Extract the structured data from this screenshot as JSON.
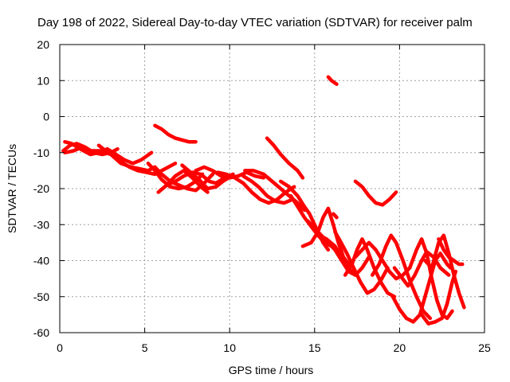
{
  "chart_data": {
    "type": "line",
    "title": "Day 198 of 2022, Sidereal Day-to-day VTEC variation (SDTVAR) for receiver palm",
    "xlabel": "GPS time / hours",
    "ylabel": "SDTVAR / TECUs",
    "xlim": [
      0,
      25
    ],
    "ylim": [
      -60,
      20
    ],
    "xticks": [
      0,
      5,
      10,
      15,
      20,
      25
    ],
    "yticks": [
      -60,
      -50,
      -40,
      -30,
      -20,
      -10,
      0,
      10,
      20
    ],
    "grid": true,
    "color": "#ff0000",
    "series": [
      {
        "name": "trace-1",
        "points": [
          [
            0.2,
            -9.5
          ],
          [
            0.6,
            -8
          ],
          [
            1.0,
            -7.5
          ],
          [
            1.5,
            -8.5
          ],
          [
            2.0,
            -10
          ],
          [
            2.5,
            -10.5
          ],
          [
            3.0,
            -10
          ],
          [
            3.4,
            -9
          ]
        ]
      },
      {
        "name": "trace-2",
        "points": [
          [
            0.3,
            -7
          ],
          [
            0.7,
            -7.5
          ],
          [
            1.2,
            -9
          ],
          [
            1.8,
            -10.5
          ],
          [
            2.3,
            -10
          ],
          [
            2.8,
            -9
          ],
          [
            3.3,
            -10.5
          ],
          [
            3.8,
            -12
          ],
          [
            4.3,
            -13
          ],
          [
            4.8,
            -12
          ],
          [
            5.4,
            -10
          ]
        ]
      },
      {
        "name": "trace-3",
        "points": [
          [
            0.3,
            -10
          ],
          [
            0.8,
            -9.5
          ],
          [
            1.3,
            -8.5
          ],
          [
            1.8,
            -9.5
          ],
          [
            2.4,
            -9.5
          ],
          [
            3.0,
            -10.5
          ],
          [
            3.6,
            -13
          ],
          [
            4.2,
            -14
          ],
          [
            4.7,
            -14.5
          ],
          [
            5.2,
            -15
          ],
          [
            5.6,
            -14
          ]
        ]
      },
      {
        "name": "trace-4",
        "points": [
          [
            2.3,
            -8
          ],
          [
            2.7,
            -9.5
          ],
          [
            3.2,
            -11
          ],
          [
            3.6,
            -12.5
          ],
          [
            4.1,
            -14
          ],
          [
            4.6,
            -15
          ],
          [
            5.1,
            -15.5
          ],
          [
            5.6,
            -16
          ],
          [
            6.0,
            -15
          ],
          [
            6.4,
            -14
          ],
          [
            6.8,
            -13
          ]
        ]
      },
      {
        "name": "trace-5",
        "points": [
          [
            5.2,
            -13
          ],
          [
            5.6,
            -15
          ],
          [
            6.0,
            -17.5
          ],
          [
            6.5,
            -19.5
          ],
          [
            7.0,
            -20
          ],
          [
            7.5,
            -19.5
          ],
          [
            8.0,
            -18
          ],
          [
            8.4,
            -16
          ]
        ]
      },
      {
        "name": "trace-6",
        "points": [
          [
            5.6,
            -14
          ],
          [
            6.0,
            -16
          ],
          [
            6.5,
            -18
          ],
          [
            7.0,
            -19
          ],
          [
            7.5,
            -20
          ],
          [
            8.0,
            -20.5
          ],
          [
            8.5,
            -18.5
          ],
          [
            9.0,
            -16
          ]
        ]
      },
      {
        "name": "trace-7",
        "points": [
          [
            6.3,
            -19
          ],
          [
            6.8,
            -18
          ],
          [
            7.3,
            -16.5
          ],
          [
            7.8,
            -15.5
          ],
          [
            8.3,
            -16
          ],
          [
            8.8,
            -18
          ],
          [
            9.2,
            -18.5
          ],
          [
            9.7,
            -17
          ],
          [
            10.2,
            -16
          ]
        ]
      },
      {
        "name": "trace-8",
        "points": [
          [
            5.8,
            -21
          ],
          [
            6.3,
            -19
          ],
          [
            6.8,
            -16.5
          ],
          [
            7.3,
            -15
          ],
          [
            7.8,
            -17
          ],
          [
            8.3,
            -19.5
          ],
          [
            8.7,
            -21
          ]
        ]
      },
      {
        "name": "trace-9",
        "points": [
          [
            7.2,
            -13.5
          ],
          [
            7.7,
            -15.5
          ],
          [
            8.2,
            -17.5
          ],
          [
            8.7,
            -20
          ],
          [
            9.2,
            -19.5
          ],
          [
            9.6,
            -18
          ],
          [
            10.1,
            -16.5
          ]
        ]
      },
      {
        "name": "trace-10",
        "points": [
          [
            8.0,
            -15
          ],
          [
            8.5,
            -14
          ],
          [
            9.0,
            -15
          ],
          [
            9.5,
            -16.5
          ],
          [
            10.0,
            -17
          ],
          [
            10.5,
            -16.5
          ],
          [
            11.0,
            -15.5
          ],
          [
            11.5,
            -16.5
          ],
          [
            12.0,
            -17
          ]
        ]
      },
      {
        "name": "trace-11",
        "points": [
          [
            9.3,
            -15.5
          ],
          [
            9.8,
            -16
          ],
          [
            10.3,
            -17
          ],
          [
            10.8,
            -18.5
          ],
          [
            11.3,
            -21
          ],
          [
            11.8,
            -23
          ],
          [
            12.3,
            -24
          ],
          [
            12.8,
            -23
          ],
          [
            13.3,
            -21
          ],
          [
            13.8,
            -19.5
          ]
        ]
      },
      {
        "name": "trace-12",
        "points": [
          [
            10.8,
            -16.5
          ],
          [
            11.3,
            -18
          ],
          [
            11.7,
            -19.5
          ],
          [
            12.2,
            -22
          ],
          [
            12.7,
            -23.5
          ],
          [
            13.2,
            -24
          ],
          [
            13.7,
            -23
          ]
        ]
      },
      {
        "name": "trace-13",
        "points": [
          [
            10.9,
            -15
          ],
          [
            11.4,
            -15
          ],
          [
            12.0,
            -16
          ],
          [
            12.5,
            -18
          ],
          [
            13.0,
            -20
          ],
          [
            13.5,
            -22
          ],
          [
            14.0,
            -24
          ],
          [
            14.4,
            -26
          ]
        ]
      },
      {
        "name": "trace-14",
        "points": [
          [
            12.2,
            -6
          ],
          [
            12.6,
            -8
          ],
          [
            13.0,
            -10.5
          ],
          [
            13.5,
            -13
          ],
          [
            14.0,
            -15
          ],
          [
            14.3,
            -17
          ]
        ]
      },
      {
        "name": "trace-15",
        "points": [
          [
            13.0,
            -18
          ],
          [
            13.5,
            -19.5
          ],
          [
            14.0,
            -22
          ],
          [
            14.4,
            -25
          ],
          [
            14.7,
            -27
          ],
          [
            15.1,
            -31
          ],
          [
            15.5,
            -35
          ],
          [
            15.8,
            -37
          ]
        ]
      },
      {
        "name": "trace-16",
        "points": [
          [
            13.6,
            -22
          ],
          [
            14.0,
            -25
          ],
          [
            14.4,
            -28
          ],
          [
            14.8,
            -30.5
          ],
          [
            15.2,
            -33
          ],
          [
            15.6,
            -35
          ],
          [
            16.0,
            -36
          ],
          [
            16.4,
            -37.5
          ]
        ]
      },
      {
        "name": "trace-17",
        "points": [
          [
            14.3,
            -36
          ],
          [
            14.8,
            -35
          ],
          [
            15.2,
            -32
          ],
          [
            15.5,
            -28
          ],
          [
            15.8,
            -25.5
          ],
          [
            16.1,
            -30
          ],
          [
            16.4,
            -35
          ],
          [
            16.7,
            -39
          ],
          [
            17.0,
            -41
          ]
        ]
      },
      {
        "name": "trace-18",
        "points": [
          [
            14.6,
            -29
          ],
          [
            15.0,
            -31
          ],
          [
            15.4,
            -33
          ],
          [
            15.8,
            -35
          ],
          [
            16.2,
            -37
          ],
          [
            16.6,
            -40
          ],
          [
            17.0,
            -43
          ],
          [
            17.4,
            -44
          ]
        ]
      },
      {
        "name": "trace-19",
        "points": [
          [
            15.3,
            -33
          ],
          [
            15.7,
            -34
          ],
          [
            16.2,
            -36
          ],
          [
            16.6,
            -39
          ],
          [
            17.0,
            -42
          ],
          [
            17.4,
            -44
          ],
          [
            17.8,
            -42
          ],
          [
            18.2,
            -39
          ]
        ]
      },
      {
        "name": "trace-20",
        "points": [
          [
            16.2,
            -32
          ],
          [
            16.5,
            -34.5
          ],
          [
            16.9,
            -38
          ],
          [
            17.3,
            -42
          ],
          [
            17.7,
            -46
          ],
          [
            18.1,
            -49
          ],
          [
            18.5,
            -48
          ],
          [
            18.9,
            -45.5
          ],
          [
            19.3,
            -42
          ]
        ]
      },
      {
        "name": "trace-21",
        "points": [
          [
            16.8,
            -44
          ],
          [
            17.2,
            -41
          ],
          [
            17.5,
            -37
          ],
          [
            17.8,
            -34
          ],
          [
            18.1,
            -37
          ],
          [
            18.5,
            -42
          ],
          [
            18.9,
            -46
          ],
          [
            19.3,
            -49
          ],
          [
            19.7,
            -50
          ]
        ]
      },
      {
        "name": "trace-22",
        "points": [
          [
            17.4,
            -39
          ],
          [
            17.8,
            -37
          ],
          [
            18.2,
            -35
          ],
          [
            18.6,
            -37
          ],
          [
            19.0,
            -40
          ],
          [
            19.4,
            -43
          ],
          [
            19.8,
            -45
          ],
          [
            20.2,
            -44
          ],
          [
            20.6,
            -42
          ]
        ]
      },
      {
        "name": "trace-23",
        "points": [
          [
            18.4,
            -44
          ],
          [
            18.8,
            -41
          ],
          [
            19.2,
            -36
          ],
          [
            19.5,
            -33
          ],
          [
            19.8,
            -35
          ],
          [
            20.2,
            -40
          ],
          [
            20.6,
            -45.5
          ],
          [
            21.0,
            -50
          ],
          [
            21.4,
            -54
          ],
          [
            21.8,
            -56
          ]
        ]
      },
      {
        "name": "trace-24",
        "points": [
          [
            19.7,
            -42
          ],
          [
            20.1,
            -44.5
          ],
          [
            20.5,
            -47
          ],
          [
            20.9,
            -44
          ],
          [
            21.3,
            -40
          ],
          [
            21.6,
            -37.5
          ],
          [
            22.0,
            -39
          ],
          [
            22.4,
            -42
          ],
          [
            22.9,
            -44
          ]
        ]
      },
      {
        "name": "trace-25",
        "points": [
          [
            19.6,
            -50
          ],
          [
            20.0,
            -53.5
          ],
          [
            20.4,
            -56
          ],
          [
            20.8,
            -57
          ],
          [
            21.2,
            -55
          ],
          [
            21.5,
            -50
          ],
          [
            21.8,
            -45
          ],
          [
            22.1,
            -40
          ],
          [
            22.4,
            -38
          ],
          [
            22.8,
            -41
          ],
          [
            23.0,
            -42
          ]
        ]
      },
      {
        "name": "trace-26",
        "points": [
          [
            20.6,
            -42
          ],
          [
            21.0,
            -37
          ],
          [
            21.3,
            -34
          ],
          [
            21.6,
            -38
          ],
          [
            21.9,
            -45
          ],
          [
            22.2,
            -51
          ],
          [
            22.5,
            -55
          ],
          [
            22.8,
            -56
          ],
          [
            23.1,
            -54
          ]
        ]
      },
      {
        "name": "trace-27",
        "points": [
          [
            21.3,
            -55
          ],
          [
            21.7,
            -57.5
          ],
          [
            22.1,
            -57
          ],
          [
            22.5,
            -56
          ],
          [
            22.8,
            -52
          ],
          [
            23.1,
            -46
          ],
          [
            23.3,
            -43
          ]
        ]
      },
      {
        "name": "trace-28",
        "points": [
          [
            21.5,
            -40
          ],
          [
            21.9,
            -42
          ],
          [
            22.3,
            -35
          ],
          [
            22.6,
            -33
          ],
          [
            22.9,
            -38
          ],
          [
            23.2,
            -44
          ],
          [
            23.5,
            -49
          ],
          [
            23.8,
            -53
          ]
        ]
      },
      {
        "name": "trace-29",
        "points": [
          [
            22.3,
            -34
          ],
          [
            22.6,
            -37
          ],
          [
            22.9,
            -39
          ],
          [
            23.2,
            -40
          ],
          [
            23.5,
            -41
          ],
          [
            23.7,
            -41
          ]
        ]
      },
      {
        "name": "trace-30",
        "points": [
          [
            5.6,
            -2.5
          ],
          [
            6.0,
            -3.5
          ],
          [
            6.4,
            -5
          ],
          [
            6.8,
            -6
          ],
          [
            7.2,
            -6.5
          ],
          [
            7.6,
            -7
          ],
          [
            8.0,
            -7
          ]
        ]
      },
      {
        "name": "trace-31",
        "points": [
          [
            17.4,
            -18
          ],
          [
            17.8,
            -19.5
          ],
          [
            18.2,
            -22
          ],
          [
            18.6,
            -24
          ],
          [
            19.0,
            -24.5
          ],
          [
            19.4,
            -23
          ],
          [
            19.8,
            -21
          ]
        ]
      },
      {
        "name": "trace-32",
        "points": [
          [
            15.8,
            11
          ],
          [
            16.0,
            10
          ],
          [
            16.3,
            9
          ]
        ]
      },
      {
        "name": "trace-33",
        "points": [
          [
            16.1,
            -27
          ],
          [
            16.3,
            -28
          ]
        ]
      }
    ]
  }
}
